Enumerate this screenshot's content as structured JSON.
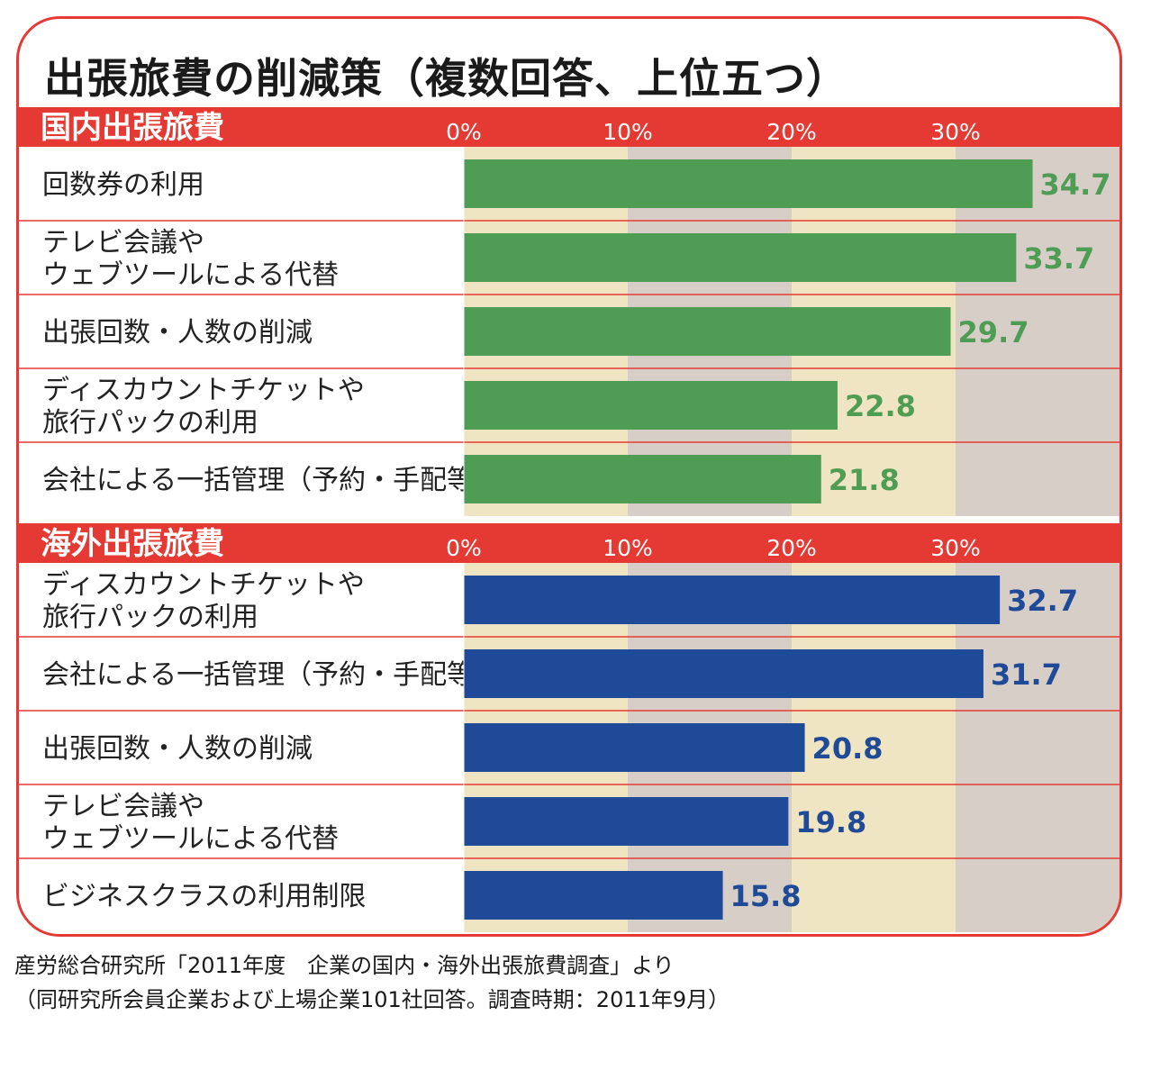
{
  "title": "出張旅費の削減策（複数回答、上位五つ）",
  "colors": {
    "accent": "#e53a33",
    "domestic_bar": "#4f9d55",
    "overseas_bar": "#1f4a97",
    "band_light": "#efe5c2",
    "band_dark": "#d8cec8"
  },
  "chart_data": [
    {
      "type": "bar",
      "orientation": "horizontal",
      "title": "国内出張旅費",
      "unit": "%",
      "xlim": [
        0,
        40
      ],
      "xticks": [
        "0%",
        "10%",
        "20%",
        "30%"
      ],
      "categories": [
        "回数券の利用",
        "テレビ会議や\nウェブツールによる代替",
        "出張回数・人数の削減",
        "ディスカウントチケットや\n旅行パックの利用",
        "会社による一括管理（予約・手配等）"
      ],
      "values": [
        34.7,
        33.7,
        29.7,
        22.8,
        21.8
      ],
      "value_labels": [
        "34.7",
        "33.7",
        "29.7",
        "22.8",
        "21.8"
      ]
    },
    {
      "type": "bar",
      "orientation": "horizontal",
      "title": "海外出張旅費",
      "unit": "%",
      "xlim": [
        0,
        40
      ],
      "xticks": [
        "0%",
        "10%",
        "20%",
        "30%"
      ],
      "categories": [
        "ディスカウントチケットや\n旅行パックの利用",
        "会社による一括管理（予約・手配等）",
        "出張回数・人数の削減",
        "テレビ会議や\nウェブツールによる代替",
        "ビジネスクラスの利用制限"
      ],
      "values": [
        32.7,
        31.7,
        20.8,
        19.8,
        15.8
      ],
      "value_labels": [
        "32.7",
        "31.7",
        "20.8",
        "19.8",
        "15.8"
      ]
    }
  ],
  "source": {
    "line1": "産労総合研究所「2011年度　企業の国内・海外出張旅費調査」より",
    "line2": "（同研究所会員企業および上場企業101社回答。調査時期：2011年9月）"
  }
}
